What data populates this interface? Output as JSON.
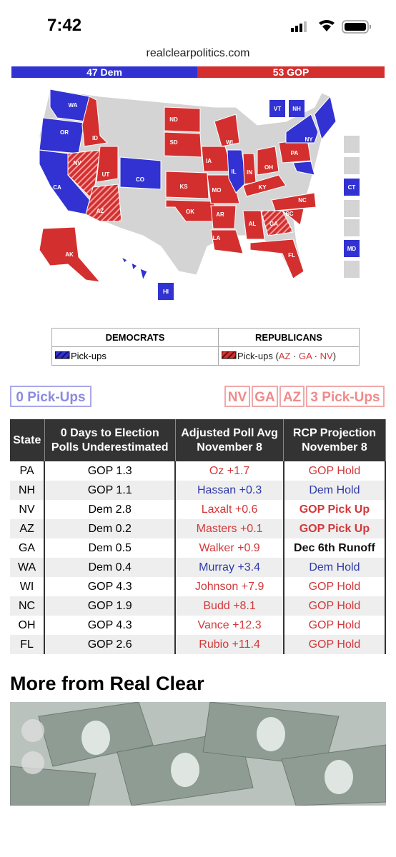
{
  "status_bar": {
    "time": "7:42"
  },
  "address_bar": {
    "url": "realclearpolitics.com"
  },
  "seat_bar": {
    "dem": "47 Dem",
    "gop": "53 GOP"
  },
  "map": {
    "states": [
      "WA",
      "OR",
      "CA",
      "ID",
      "NV",
      "UT",
      "AZ",
      "CO",
      "ND",
      "SD",
      "KS",
      "OK",
      "AK",
      "HI",
      "IA",
      "MO",
      "AR",
      "LA",
      "WI",
      "IL",
      "IN",
      "OH",
      "KY",
      "PA",
      "NY",
      "NC",
      "SC",
      "GA",
      "AL",
      "FL",
      "VT",
      "NH",
      "CT",
      "MD"
    ]
  },
  "legend": {
    "dem_header": "DEMOCRATS",
    "gop_header": "REPUBLICANS",
    "dem_pickups": "Pick-ups",
    "gop_pickups": [
      "Pick-ups (",
      "AZ",
      " · ",
      "GA",
      " · ",
      "NV",
      ")"
    ]
  },
  "pickups": {
    "dem": "0 Pick-Ups",
    "gop_states": [
      "NV",
      "GA",
      "AZ"
    ],
    "gop": "3 Pick-Ups"
  },
  "table": {
    "headers": [
      [
        "State"
      ],
      [
        "0 Days to Election",
        "Polls Underestimated"
      ],
      [
        "Adjusted Poll Avg",
        "November 8"
      ],
      [
        "RCP Projection",
        "November 8"
      ]
    ],
    "rows": [
      [
        "PA",
        "GOP 1.3",
        "Oz +1.7",
        "GOP Hold"
      ],
      [
        "NH",
        "GOP 1.1",
        "Hassan +0.3",
        "Dem Hold"
      ],
      [
        "NV",
        "Dem 2.8",
        "Laxalt +0.6",
        "GOP Pick Up"
      ],
      [
        "AZ",
        "Dem 0.2",
        "Masters +0.1",
        "GOP Pick Up"
      ],
      [
        "GA",
        "Dem 0.5",
        "Walker +0.9",
        "Dec 6th Runoff"
      ],
      [
        "WA",
        "Dem 0.4",
        "Murray +3.4",
        "Dem Hold"
      ],
      [
        "WI",
        "GOP 4.3",
        "Johnson +7.9",
        "GOP Hold"
      ],
      [
        "NC",
        "GOP 1.9",
        "Budd +8.1",
        "GOP Hold"
      ],
      [
        "OH",
        "GOP 4.3",
        "Vance +12.3",
        "GOP Hold"
      ],
      [
        "FL",
        "GOP 2.6",
        "Rubio +11.4",
        "GOP Hold"
      ]
    ]
  },
  "more": {
    "title": "More from Real Clear"
  }
}
